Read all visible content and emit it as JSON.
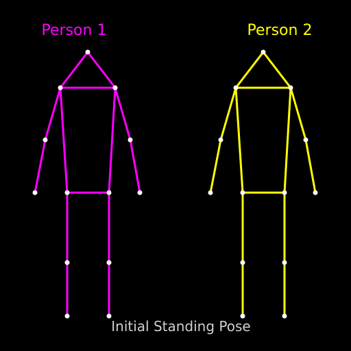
{
  "figures": [
    {
      "label": "Person 1",
      "color": "#ff00ff"
    },
    {
      "label": "Person 2",
      "color": "#ffff00"
    }
  ],
  "caption": "Initial Standing Pose",
  "joint_color": "#ffffff",
  "background_color": "#000000"
}
